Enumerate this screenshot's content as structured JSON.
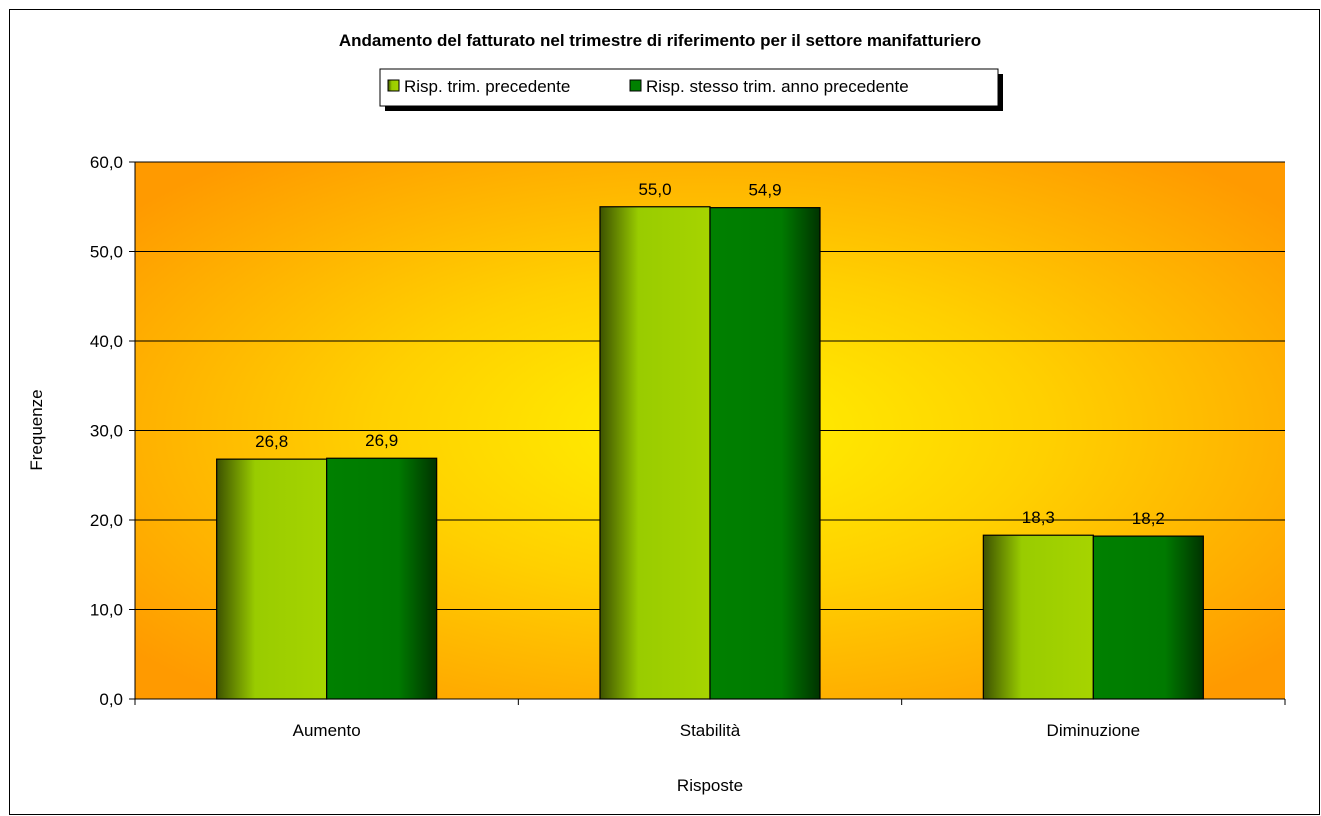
{
  "chart_data": {
    "type": "bar",
    "title": "Andamento del fatturato nel trimestre di riferimento per il settore manifatturiero",
    "xlabel": "Risposte",
    "ylabel": "Frequenze",
    "categories": [
      "Aumento",
      "Stabilità",
      "Diminuzione"
    ],
    "series": [
      {
        "name": "Risp. trim. precedente",
        "values": [
          26.8,
          55.0,
          18.3
        ],
        "labels": [
          "26,8",
          "55,0",
          "18,3"
        ],
        "color": "#99cc00"
      },
      {
        "name": "Risp. stesso trim. anno precedente",
        "values": [
          26.9,
          54.9,
          18.2
        ],
        "labels": [
          "26,9",
          "54,9",
          "18,2"
        ],
        "color": "#008000"
      }
    ],
    "ylim": [
      0,
      60
    ],
    "yticks": [
      0,
      10,
      20,
      30,
      40,
      50,
      60
    ],
    "ytick_labels": [
      "0,0",
      "10,0",
      "20,0",
      "30,0",
      "40,0",
      "50,0",
      "60,0"
    ],
    "grid": true,
    "legend_position": "top-center",
    "plot_background": "#ffa000",
    "plot_background_center": "#fff200"
  }
}
